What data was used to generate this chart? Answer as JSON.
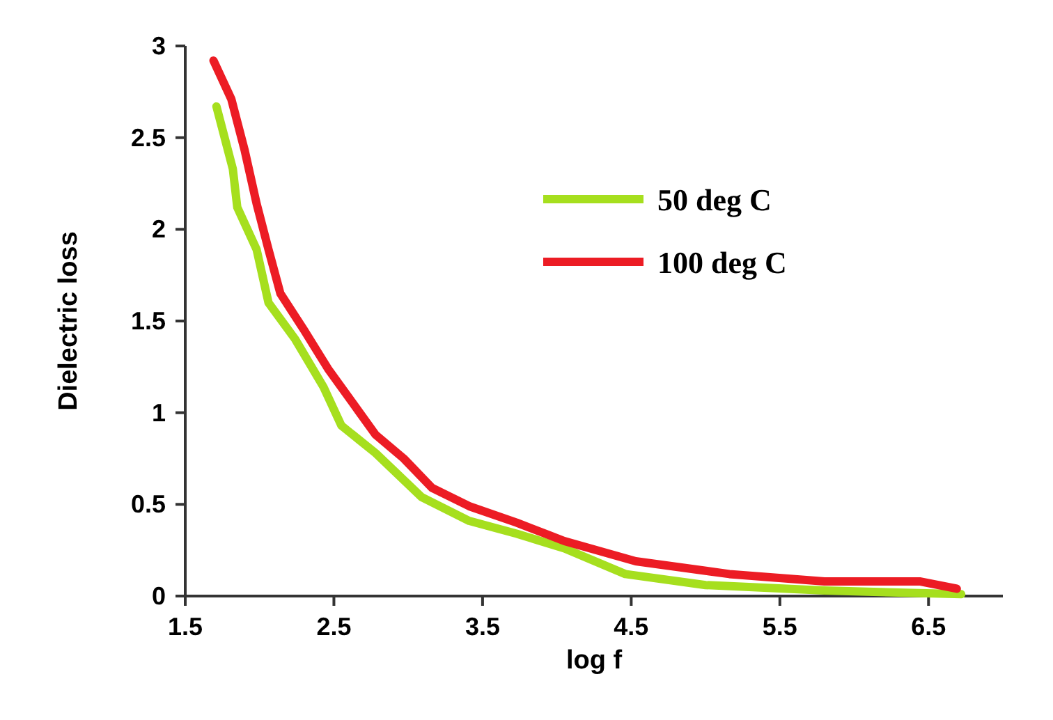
{
  "chart_data": {
    "type": "line",
    "xlabel": "log f",
    "ylabel": "Dielectric loss",
    "xlim": [
      1.5,
      7
    ],
    "xticks": [
      1.5,
      2.5,
      3.5,
      4.5,
      5.5,
      6.5
    ],
    "ylim": [
      0,
      3
    ],
    "yticks": [
      0,
      0.5,
      1,
      1.5,
      2,
      2.5,
      3
    ],
    "grid": false,
    "legend": "top right",
    "marker": "none",
    "line_style": "solid",
    "series": [
      {
        "name": "50 deg C",
        "color": "#a6df1e",
        "x": [
          1.71,
          1.82,
          1.85,
          1.98,
          2.06,
          2.24,
          2.43,
          2.55,
          2.78,
          3.09,
          3.41,
          3.73,
          4.05,
          4.46,
          5.0,
          5.8,
          6.72
        ],
        "values": [
          2.67,
          2.33,
          2.12,
          1.89,
          1.6,
          1.4,
          1.14,
          0.93,
          0.78,
          0.54,
          0.41,
          0.34,
          0.26,
          0.12,
          0.06,
          0.03,
          0.01
        ]
      },
      {
        "name": "100 deg C",
        "color": "#ec1c24",
        "x": [
          1.69,
          1.81,
          1.9,
          1.98,
          2.06,
          2.14,
          2.3,
          2.46,
          2.62,
          2.78,
          2.97,
          3.16,
          3.41,
          3.73,
          4.05,
          4.53,
          5.16,
          5.8,
          6.44,
          6.69
        ],
        "values": [
          2.92,
          2.71,
          2.43,
          2.14,
          1.89,
          1.65,
          1.45,
          1.24,
          1.06,
          0.88,
          0.75,
          0.59,
          0.49,
          0.4,
          0.3,
          0.19,
          0.12,
          0.08,
          0.08,
          0.04
        ]
      }
    ]
  }
}
